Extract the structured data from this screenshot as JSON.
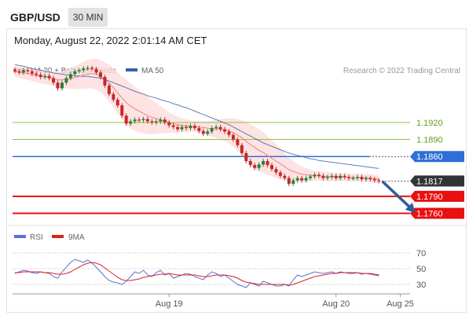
{
  "header": {
    "pair": "GBP/USD",
    "timeframe": "30 MIN"
  },
  "datetime": "Monday, August 22, 2022 2:01:14 AM CET",
  "legend": {
    "ma20": "MA 20 + Bollinger Bands",
    "ma50": "MA 50",
    "rsi": "RSI",
    "ma9": "9MA"
  },
  "credit": "Research © 2022 Trading Central",
  "colors": {
    "bull": "#2e7d32",
    "bear": "#c62828",
    "ma20": "#f08080",
    "ma50": "#3a5fa8",
    "band": "#fcdcdc",
    "green_level": "#8bc34a",
    "blue_level": "#2f6fd6",
    "red_level": "#e81010",
    "last": "#333333",
    "rsi": "#5b6fd6",
    "ma9": "#e02020"
  },
  "chart_data": [
    {
      "type": "candlestick",
      "ylim": [
        1.174,
        1.2
      ],
      "x_ticks": [
        {
          "index": 36,
          "label": "Aug 19"
        },
        {
          "index": 75,
          "label": "Aug 20"
        },
        {
          "index": 90,
          "label": "Aug 25"
        }
      ],
      "price_close": [
        1.201,
        1.2008,
        1.2012,
        1.201,
        1.2006,
        1.2004,
        1.2,
        1.2002,
        1.1998,
        1.199,
        1.198,
        1.199,
        1.1998,
        1.2005,
        1.201,
        1.2012,
        1.2015,
        1.2016,
        1.2014,
        1.2008,
        1.2,
        1.1985,
        1.197,
        1.196,
        1.195,
        1.1932,
        1.1918,
        1.1922,
        1.1925,
        1.1924,
        1.1926,
        1.1922,
        1.192,
        1.1922,
        1.1925,
        1.192,
        1.1915,
        1.1912,
        1.1908,
        1.1912,
        1.191,
        1.1914,
        1.191,
        1.1905,
        1.19,
        1.1904,
        1.191,
        1.1912,
        1.1908,
        1.1904,
        1.1898,
        1.189,
        1.188,
        1.1866,
        1.1852,
        1.1845,
        1.184,
        1.1846,
        1.1852,
        1.1845,
        1.1838,
        1.1832,
        1.1826,
        1.1822,
        1.1812,
        1.1818,
        1.1822,
        1.1818,
        1.1822,
        1.1825,
        1.1828,
        1.1826,
        1.1822,
        1.1824,
        1.1826,
        1.1822,
        1.1826,
        1.1824,
        1.1822,
        1.1822,
        1.1824,
        1.182,
        1.1822,
        1.182,
        1.1818,
        1.1817
      ],
      "ma20": [
        1.201,
        1.2008,
        1.2007,
        1.2006,
        1.2004,
        1.2003,
        1.2001,
        1.2,
        1.1999,
        1.1997,
        1.1995,
        1.1995,
        1.1996,
        1.1997,
        1.1999,
        1.2001,
        1.2003,
        1.2005,
        1.2006,
        1.2005,
        1.2002,
        1.1996,
        1.1989,
        1.1981,
        1.1972,
        1.1963,
        1.1955,
        1.1949,
        1.1944,
        1.194,
        1.1936,
        1.1932,
        1.1929,
        1.1927,
        1.1925,
        1.1922,
        1.192,
        1.1918,
        1.1916,
        1.1915,
        1.1914,
        1.1914,
        1.1913,
        1.1912,
        1.1911,
        1.191,
        1.1909,
        1.1909,
        1.1908,
        1.1907,
        1.1905,
        1.1902,
        1.1898,
        1.1893,
        1.1887,
        1.1881,
        1.1876,
        1.1871,
        1.1867,
        1.1862,
        1.1857,
        1.1852,
        1.1847,
        1.1842,
        1.1837,
        1.1834,
        1.1831,
        1.1829,
        1.1828,
        1.1827,
        1.1826,
        1.1826,
        1.1825,
        1.1825,
        1.1824,
        1.1824,
        1.1824,
        1.1824,
        1.1823,
        1.1823,
        1.1823,
        1.1823,
        1.1822,
        1.1822,
        1.1821,
        1.182
      ],
      "ma50": [
        1.2022,
        1.202,
        1.2019,
        1.2017,
        1.2015,
        1.2013,
        1.2012,
        1.201,
        1.2009,
        1.2007,
        1.2006,
        1.2005,
        1.2004,
        1.2003,
        1.2002,
        1.2002,
        1.2001,
        1.2001,
        1.2,
        1.1999,
        1.1998,
        1.1996,
        1.1993,
        1.199,
        1.1987,
        1.1984,
        1.1981,
        1.1978,
        1.1975,
        1.1972,
        1.197,
        1.1967,
        1.1965,
        1.1963,
        1.196,
        1.1958,
        1.1956,
        1.1953,
        1.1951,
        1.1948,
        1.1946,
        1.1943,
        1.194,
        1.1937,
        1.1934,
        1.1931,
        1.1928,
        1.1925,
        1.1922,
        1.1919,
        1.1916,
        1.1912,
        1.1908,
        1.1904,
        1.19,
        1.1896,
        1.1892,
        1.1888,
        1.1884,
        1.1881,
        1.1878,
        1.1875,
        1.1872,
        1.1869,
        1.1866,
        1.1864,
        1.1862,
        1.186,
        1.1858,
        1.1856,
        1.1855,
        1.1853,
        1.1852,
        1.1851,
        1.185,
        1.1849,
        1.1848,
        1.1847,
        1.1846,
        1.1845,
        1.1844,
        1.1843,
        1.1842,
        1.1841,
        1.184,
        1.1839
      ],
      "band_width": [
        0.001,
        0.001,
        0.0011,
        0.0011,
        0.0011,
        0.0012,
        0.0012,
        0.0012,
        0.0013,
        0.0013,
        0.0014,
        0.0015,
        0.0016,
        0.0018,
        0.002,
        0.0022,
        0.0024,
        0.0025,
        0.0026,
        0.0027,
        0.0028,
        0.003,
        0.0032,
        0.0034,
        0.0036,
        0.0038,
        0.004,
        0.004,
        0.0039,
        0.0037,
        0.0035,
        0.0033,
        0.003,
        0.0027,
        0.0024,
        0.0021,
        0.0018,
        0.0016,
        0.0014,
        0.0012,
        0.0011,
        0.001,
        0.001,
        0.001,
        0.0011,
        0.0012,
        0.0014,
        0.0016,
        0.0018,
        0.002,
        0.0022,
        0.0025,
        0.0028,
        0.0031,
        0.0034,
        0.0036,
        0.0037,
        0.0037,
        0.0036,
        0.0034,
        0.0032,
        0.003,
        0.0027,
        0.0024,
        0.0021,
        0.0018,
        0.0016,
        0.0014,
        0.0012,
        0.001,
        0.0009,
        0.0008,
        0.0008,
        0.0008,
        0.0008,
        0.0007,
        0.0007,
        0.0007,
        0.0007,
        0.0007,
        0.0007,
        0.0007,
        0.0007,
        0.0007,
        0.0007,
        0.0007
      ],
      "levels": [
        {
          "value": 1.192,
          "label": "1.1920",
          "kind": "resistance-green"
        },
        {
          "value": 1.189,
          "label": "1.1890",
          "kind": "resistance-green"
        },
        {
          "value": 1.186,
          "label": "1.1860",
          "kind": "pivot-blue"
        },
        {
          "value": 1.1817,
          "label": "1.1817",
          "kind": "last-price"
        },
        {
          "value": 1.179,
          "label": "1.1790",
          "kind": "support-red"
        },
        {
          "value": 1.176,
          "label": "1.1760",
          "kind": "support-red"
        }
      ],
      "forecast_arrow": {
        "from_index": 86,
        "from_value": 1.1815,
        "to_index": 93,
        "to_value": 1.1765
      }
    },
    {
      "type": "line",
      "ylim": [
        20,
        80
      ],
      "y_ticks": [
        70,
        50,
        30
      ],
      "rsi": [
        44,
        46,
        48,
        47,
        45,
        44,
        46,
        45,
        44,
        40,
        38,
        46,
        52,
        58,
        62,
        60,
        58,
        61,
        57,
        52,
        46,
        40,
        35,
        33,
        32,
        30,
        34,
        40,
        46,
        44,
        48,
        42,
        40,
        45,
        48,
        42,
        44,
        38,
        40,
        42,
        44,
        43,
        40,
        38,
        36,
        42,
        46,
        44,
        40,
        42,
        38,
        34,
        30,
        28,
        26,
        32,
        30,
        28,
        34,
        32,
        30,
        28,
        28,
        30,
        28,
        36,
        42,
        40,
        42,
        44,
        46,
        45,
        44,
        45,
        46,
        44,
        46,
        45,
        44,
        44,
        45,
        43,
        44,
        43,
        42,
        41
      ],
      "ma9": [
        45,
        45,
        46,
        46,
        46,
        46,
        46,
        45,
        45,
        44,
        43,
        43,
        44,
        46,
        49,
        52,
        55,
        57,
        58,
        57,
        55,
        51,
        47,
        43,
        39,
        36,
        35,
        35,
        36,
        37,
        39,
        40,
        41,
        42,
        43,
        43,
        44,
        43,
        42,
        42,
        42,
        42,
        42,
        41,
        40,
        40,
        41,
        42,
        42,
        42,
        41,
        40,
        38,
        35,
        33,
        32,
        31,
        30,
        30,
        30,
        30,
        30,
        30,
        30,
        29,
        30,
        32,
        34,
        36,
        38,
        40,
        41,
        42,
        43,
        44,
        44,
        45,
        45,
        45,
        45,
        45,
        44,
        44,
        44,
        43,
        42
      ]
    }
  ]
}
